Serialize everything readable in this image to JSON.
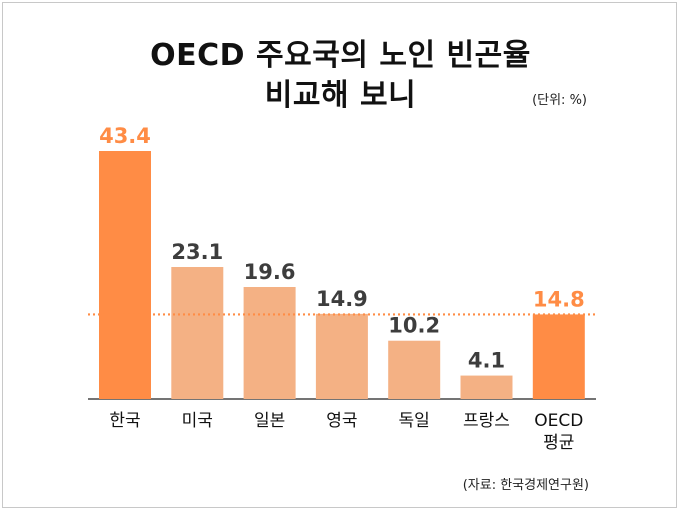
{
  "title_line1": "OECD 주요국의 노인 빈곤율",
  "title_line2": "비교해 보니",
  "unit_label": "(단위: %)",
  "source_label": "(자료: 한국경제연구원)",
  "colors": {
    "highlight": "#ff8c45",
    "default": "#f4b184",
    "value_dark": "#3d3d3d",
    "average_line": "#ff8c45"
  },
  "chart_data": {
    "type": "bar",
    "categories": [
      [
        "한국"
      ],
      [
        "미국"
      ],
      [
        "일본"
      ],
      [
        "영국"
      ],
      [
        "독일"
      ],
      [
        "프랑스"
      ],
      [
        "OECD",
        "평균"
      ]
    ],
    "values": [
      43.4,
      23.1,
      19.6,
      14.9,
      10.2,
      4.1,
      14.8
    ],
    "value_labels": [
      "43.4",
      "23.1",
      "19.6",
      "14.9",
      "10.2",
      "4.1",
      "14.8"
    ],
    "highlight": [
      true,
      false,
      false,
      false,
      false,
      false,
      true
    ],
    "reference_line": {
      "value": 14.8,
      "style": "dotted"
    },
    "ylim": [
      0,
      43.4
    ],
    "grid": false,
    "legend": "none"
  }
}
